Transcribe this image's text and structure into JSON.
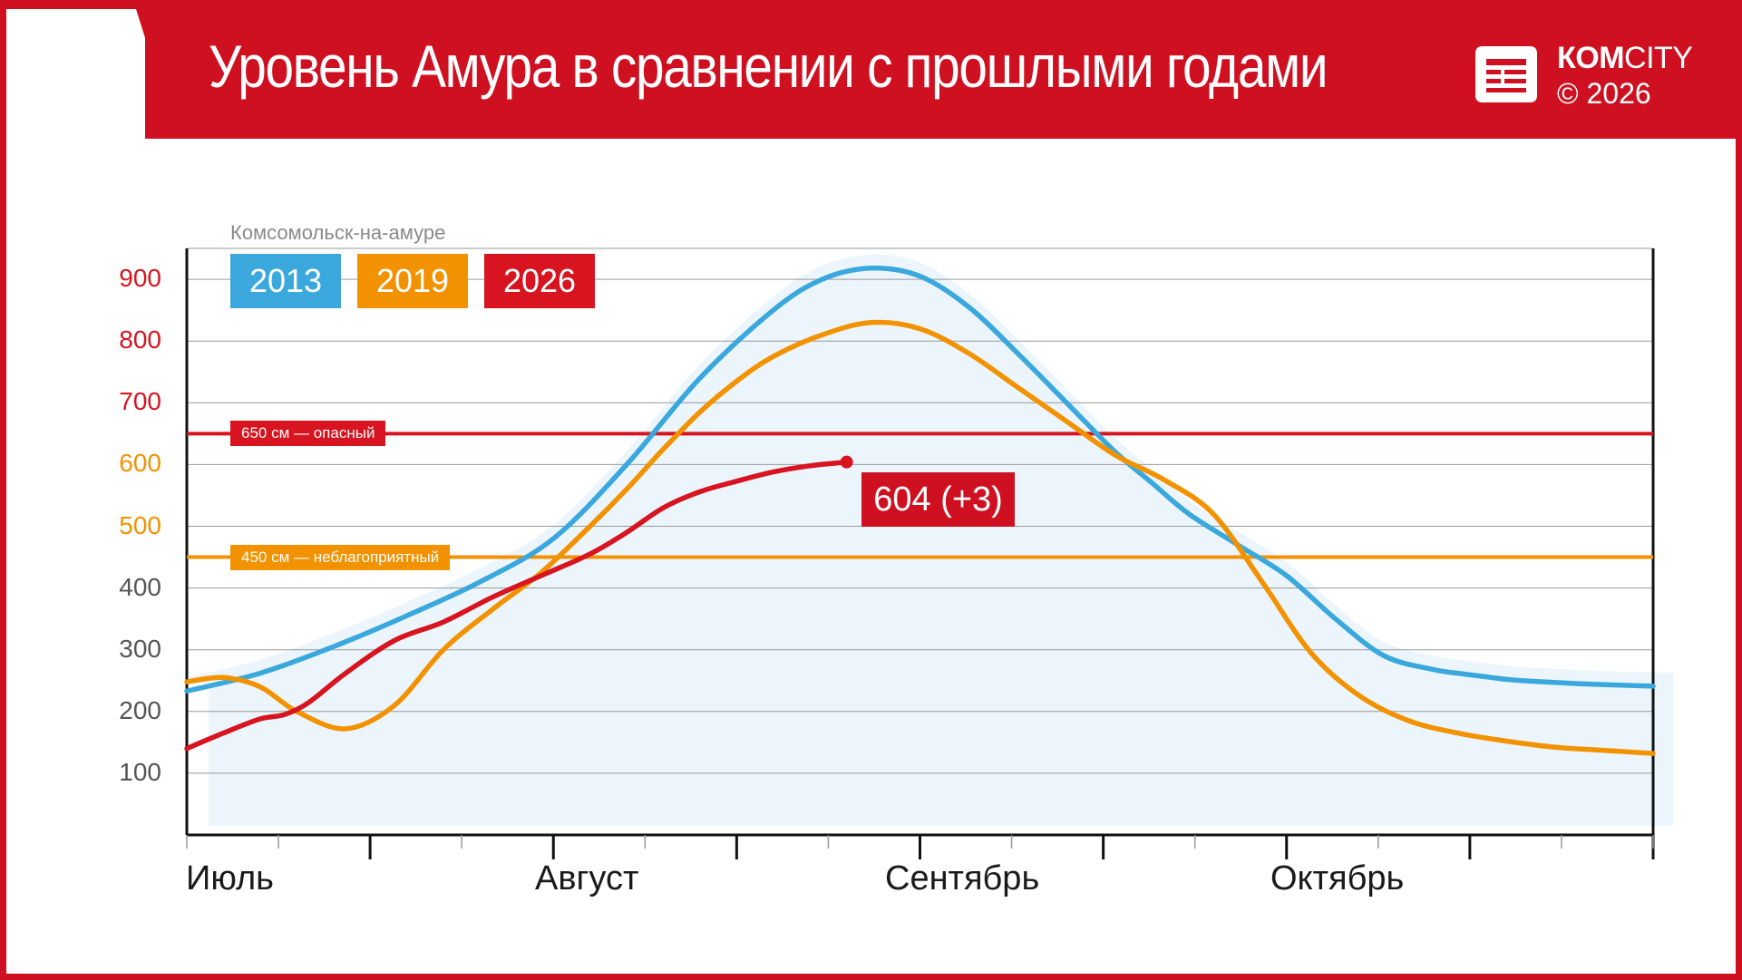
{
  "header": {
    "title": "Уровень Амура в сравнении с прошлыми годами",
    "brand_bold": "КОМ",
    "brand_rest": "CITY",
    "copyright": "© 2026",
    "band_color": "#cf1020"
  },
  "chart_data": {
    "type": "line",
    "title": "Уровень Амура в сравнении с прошлыми годами",
    "location": "Комсомольск-на-амуре",
    "xlabel": "",
    "ylabel": "",
    "months": [
      "Июль",
      "Август",
      "Сентябрь",
      "Октябрь"
    ],
    "x_unit": "day index from 1 July",
    "xlim": [
      0,
      120
    ],
    "ylim": [
      0,
      950
    ],
    "yticks": [
      100,
      200,
      300,
      400,
      500,
      600,
      700,
      800,
      900
    ],
    "grid": true,
    "legend": "top-left",
    "thresholds": [
      {
        "value": 650,
        "label": "650 см — опасный",
        "color": "#d7141f"
      },
      {
        "value": 450,
        "label": "450 см — неблагоприятный",
        "color": "#f39200"
      }
    ],
    "series": [
      {
        "name": "2013",
        "color": "#3aa8dc",
        "x": [
          0,
          6,
          12,
          18,
          24,
          30,
          36,
          42,
          48,
          52,
          56,
          60,
          64,
          68,
          72,
          76,
          79,
          82,
          86,
          90,
          94,
          98,
          102,
          104,
          106,
          108,
          110,
          114,
          120
        ],
        "values": [
          233,
          262,
          305,
          355,
          410,
          480,
          600,
          740,
          850,
          900,
          918,
          905,
          855,
          780,
          700,
          620,
          570,
          520,
          470,
          420,
          350,
          290,
          268,
          262,
          257,
          252,
          249,
          245,
          241
        ]
      },
      {
        "name": "2019",
        "color": "#f39200",
        "x": [
          0,
          3,
          6,
          9,
          13,
          17,
          21,
          25,
          29,
          33,
          36,
          39,
          42,
          45,
          48,
          52,
          56,
          60,
          64,
          68,
          72,
          76,
          80,
          84,
          88,
          92,
          96,
          100,
          104,
          108,
          112,
          116,
          120
        ],
        "values": [
          248,
          255,
          240,
          200,
          172,
          210,
          300,
          365,
          425,
          500,
          560,
          625,
          685,
          735,
          775,
          810,
          830,
          820,
          780,
          725,
          670,
          615,
          575,
          520,
          410,
          295,
          225,
          185,
          165,
          152,
          142,
          137,
          132
        ]
      },
      {
        "name": "2026",
        "color": "#d7141f",
        "x": [
          0,
          3,
          6,
          8,
          10,
          13,
          17,
          21,
          25,
          29,
          33,
          36,
          39,
          42,
          45,
          48,
          51,
          54
        ],
        "values": [
          140,
          165,
          188,
          195,
          215,
          262,
          315,
          345,
          385,
          420,
          455,
          490,
          530,
          556,
          573,
          588,
          598,
          604
        ]
      }
    ],
    "annotations": [
      {
        "series": "2026",
        "x": 54,
        "y": 604,
        "text": "604 (+3)"
      }
    ]
  }
}
